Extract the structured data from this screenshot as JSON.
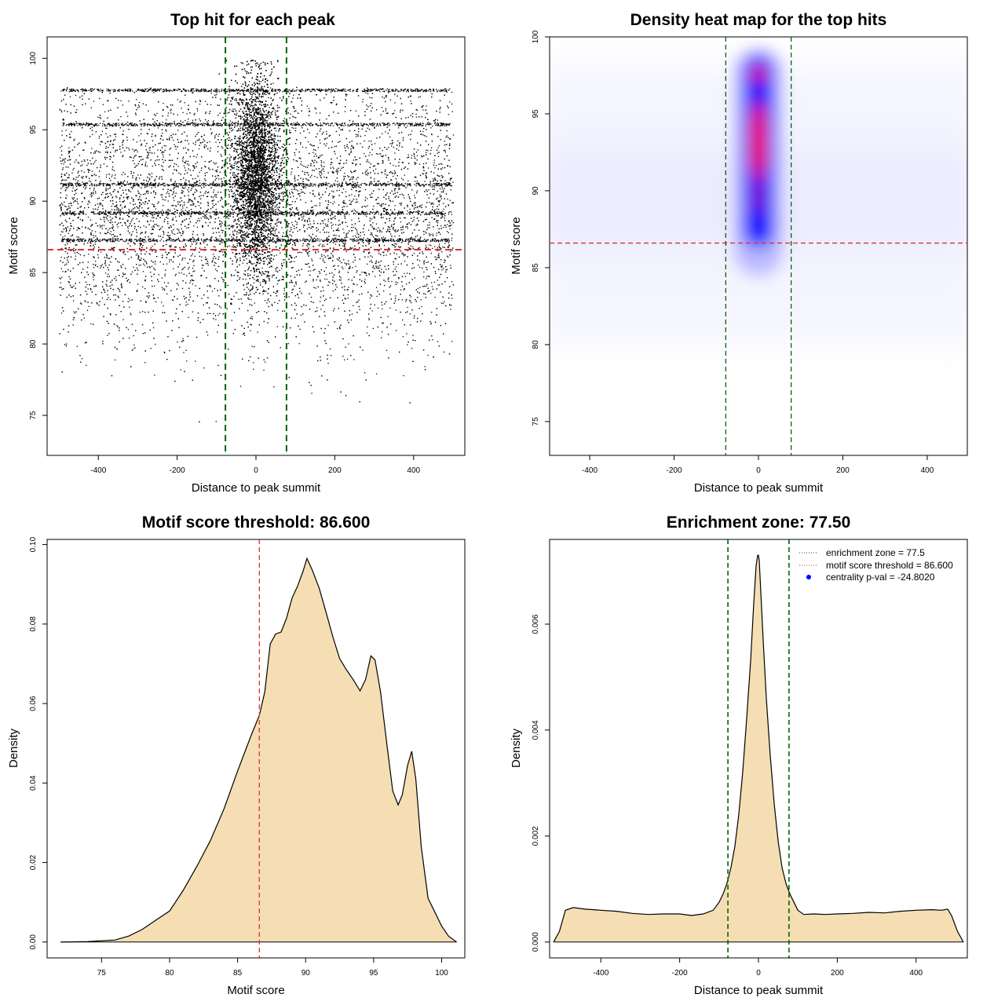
{
  "chart_data": [
    {
      "type": "scatter",
      "title": "Top hit for each peak",
      "xlabel": "Distance to peak summit",
      "ylabel": "Motif score",
      "xlim": [
        -530,
        530
      ],
      "ylim": [
        72.2,
        101.5
      ],
      "x_ticks": [
        -400,
        -200,
        0,
        200,
        400
      ],
      "y_ticks": [
        75,
        80,
        85,
        90,
        95,
        100
      ],
      "grid": false,
      "point_color": "#000000",
      "x_range_of_points": [
        -500,
        500
      ],
      "y_range_of_points": [
        72.7,
        99.9
      ],
      "dense_score_bands": [
        97.8,
        95.4,
        91.2,
        89.2,
        87.3
      ],
      "threshold_line": {
        "y": 86.6,
        "color": "#e03030"
      },
      "enrichment_lines": {
        "x": [
          -77.5,
          77.5
        ],
        "color": "#006400"
      }
    },
    {
      "type": "heatmap",
      "title": "Density heat map for the top hits",
      "xlabel": "Distance to peak summit",
      "ylabel": "Motif score",
      "xlim": [
        -495,
        495
      ],
      "ylim": [
        72.8,
        100
      ],
      "x_ticks": [
        -400,
        -200,
        0,
        200,
        400
      ],
      "y_ticks": [
        75,
        80,
        85,
        90,
        95,
        100
      ],
      "colors": {
        "low": "#ffffff",
        "mid": "#0000ff",
        "high": "#ff0000"
      },
      "hotspot": {
        "x": 0,
        "y_range": [
          86,
          98.5
        ],
        "peak_y": [
          95,
          97.6
        ]
      },
      "threshold_line": {
        "y": 86.6,
        "color": "#e03030"
      },
      "enrichment_lines": {
        "x": [
          -77.5,
          77.5
        ],
        "color": "#006400"
      }
    },
    {
      "type": "area",
      "title": "Motif score threshold: 86.600",
      "xlabel": "Motif score",
      "ylabel": "Density",
      "xlim": [
        71,
        101.7
      ],
      "ylim": [
        -0.004,
        0.1013
      ],
      "x_ticks": [
        75,
        80,
        85,
        90,
        95,
        100
      ],
      "y_ticks": [
        0.0,
        0.02,
        0.04,
        0.06,
        0.08,
        0.1
      ],
      "y_tick_labels": [
        "0.00",
        "0.02",
        "0.04",
        "0.06",
        "0.08",
        "0.10"
      ],
      "fill_color": "#f5deb3",
      "x": [
        72,
        74,
        76,
        77,
        78,
        79,
        80,
        81,
        82,
        83,
        84,
        85,
        86,
        86.6,
        87,
        87.4,
        87.8,
        88.2,
        88.6,
        89,
        89.4,
        89.8,
        90.1,
        90.5,
        91,
        91.5,
        92,
        92.5,
        93,
        93.5,
        94,
        94.4,
        94.8,
        95.1,
        95.5,
        96,
        96.4,
        96.8,
        97.1,
        97.5,
        97.8,
        98.1,
        98.5,
        99,
        99.5,
        100,
        100.5,
        101.1
      ],
      "y": [
        0,
        0.0001,
        0.0005,
        0.0015,
        0.0032,
        0.0055,
        0.0078,
        0.013,
        0.019,
        0.0255,
        0.0335,
        0.043,
        0.052,
        0.057,
        0.063,
        0.075,
        0.0775,
        0.078,
        0.0815,
        0.0865,
        0.0895,
        0.0932,
        0.0965,
        0.0935,
        0.089,
        0.083,
        0.0768,
        0.0713,
        0.0685,
        0.066,
        0.0632,
        0.066,
        0.072,
        0.071,
        0.063,
        0.049,
        0.038,
        0.0345,
        0.037,
        0.0445,
        0.048,
        0.041,
        0.024,
        0.011,
        0.0075,
        0.004,
        0.0015,
        0
      ]
    },
    {
      "type": "area",
      "title": "Enrichment zone: 77.50",
      "xlabel": "Distance to peak summit",
      "ylabel": "Density",
      "xlim": [
        -530,
        530
      ],
      "ylim": [
        -0.0003,
        0.0076
      ],
      "x_ticks": [
        -400,
        -200,
        0,
        200,
        400
      ],
      "y_ticks": [
        0.0,
        0.002,
        0.004,
        0.006
      ],
      "y_tick_labels": [
        "0.000",
        "0.002",
        "0.004",
        "0.006"
      ],
      "fill_color": "#f5deb3",
      "x": [
        -520,
        -505,
        -490,
        -470,
        -440,
        -400,
        -360,
        -320,
        -280,
        -240,
        -200,
        -170,
        -140,
        -115,
        -100,
        -90,
        -80,
        -70,
        -60,
        -50,
        -40,
        -30,
        -20,
        -12,
        -6,
        -2,
        0,
        2,
        6,
        12,
        20,
        30,
        40,
        50,
        60,
        70,
        80,
        90,
        100,
        115,
        140,
        170,
        200,
        240,
        280,
        320,
        360,
        400,
        440,
        465,
        480,
        490,
        505,
        520
      ],
      "y": [
        0,
        0.0002,
        0.0006,
        0.00065,
        0.00062,
        0.0006,
        0.00058,
        0.00054,
        0.00052,
        0.00053,
        0.00053,
        0.0005,
        0.00053,
        0.0006,
        0.00075,
        0.0009,
        0.0011,
        0.0014,
        0.0018,
        0.0024,
        0.0032,
        0.0042,
        0.0053,
        0.0064,
        0.0071,
        0.0073,
        0.0073,
        0.0072,
        0.0066,
        0.0057,
        0.0046,
        0.0035,
        0.0026,
        0.0019,
        0.0014,
        0.0011,
        0.0009,
        0.00075,
        0.0006,
        0.00052,
        0.00053,
        0.00052,
        0.00053,
        0.00054,
        0.00056,
        0.00055,
        0.00058,
        0.0006,
        0.00061,
        0.0006,
        0.00062,
        0.0005,
        0.0002,
        0
      ],
      "enrichment_lines": {
        "x": [
          -77.5,
          77.5
        ],
        "color": "#006400"
      },
      "legend": {
        "position": "top-right",
        "entries": [
          {
            "label": "enrichment zone = 77.5",
            "color": "#006400",
            "style": "dotted-line"
          },
          {
            "label": "motif score threshold = 86.600",
            "color": "#e03030",
            "style": "dotted-line"
          },
          {
            "label": "centrality p-val = -24.8020",
            "color": "#0000ff",
            "style": "point"
          }
        ]
      }
    }
  ]
}
